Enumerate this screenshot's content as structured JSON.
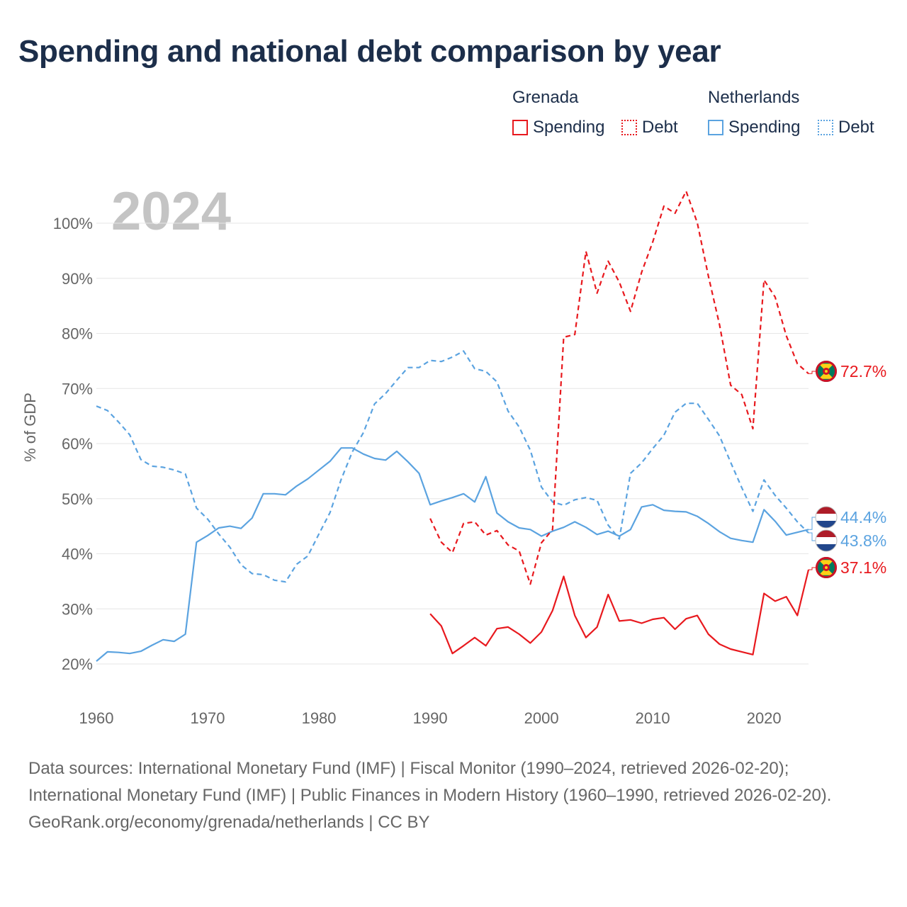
{
  "title": "Spending and national debt comparison by year",
  "legend": {
    "groups": [
      {
        "name": "Grenada",
        "spending": "Spending",
        "debt": "Debt",
        "color": "#e8191e"
      },
      {
        "name": "Netherlands",
        "spending": "Spending",
        "debt": "Debt",
        "color": "#5ba3e0"
      }
    ]
  },
  "footer": {
    "sources": "Data sources: International Monetary Fund (IMF) | Fiscal Monitor (1990–2024, retrieved 2026-02-20); International Monetary Fund (IMF) | Public Finances in Modern History (1960–1990, retrieved 2026-02-20).",
    "credit": "GeoRank.org/economy/grenada/netherlands | CC BY"
  },
  "chart_data": {
    "type": "line",
    "year_label": "2024",
    "ylabel": "% of GDP",
    "xlim": [
      1960,
      2024
    ],
    "ylim": [
      15,
      107
    ],
    "xticks": [
      1960,
      1970,
      1980,
      1990,
      2000,
      2010,
      2020
    ],
    "yticks": [
      20,
      30,
      40,
      50,
      60,
      70,
      80,
      90,
      100
    ],
    "series": [
      {
        "name": "Netherlands Spending",
        "country": "Netherlands",
        "kind": "spending",
        "color": "#5ba3e0",
        "dashed": false,
        "x": [
          1960,
          1961,
          1962,
          1963,
          1964,
          1965,
          1966,
          1967,
          1968,
          1969,
          1970,
          1971,
          1972,
          1973,
          1974,
          1975,
          1976,
          1977,
          1978,
          1979,
          1980,
          1981,
          1982,
          1983,
          1984,
          1985,
          1986,
          1987,
          1988,
          1989,
          1990,
          1991,
          1992,
          1993,
          1994,
          1995,
          1996,
          1997,
          1998,
          1999,
          2000,
          2001,
          2002,
          2003,
          2004,
          2005,
          2006,
          2007,
          2008,
          2009,
          2010,
          2011,
          2012,
          2013,
          2014,
          2015,
          2016,
          2017,
          2018,
          2019,
          2020,
          2021,
          2022,
          2023,
          2024
        ],
        "values": [
          20.5,
          22.2,
          22.1,
          21.9,
          22.3,
          23.4,
          24.4,
          24.1,
          25.4,
          42.1,
          43.3,
          44.7,
          45.0,
          44.6,
          46.5,
          50.9,
          50.9,
          50.7,
          52.3,
          53.6,
          55.2,
          56.8,
          59.2,
          59.2,
          58.1,
          57.3,
          57.0,
          58.6,
          56.7,
          54.6,
          48.9,
          49.6,
          50.2,
          50.9,
          49.4,
          54.0,
          47.4,
          45.8,
          44.7,
          44.4,
          43.2,
          44.1,
          44.8,
          45.8,
          44.8,
          43.5,
          44.1,
          43.2,
          44.4,
          48.5,
          48.9,
          47.9,
          47.7,
          47.6,
          46.8,
          45.5,
          44.0,
          42.8,
          42.4,
          42.1,
          48.0,
          45.9,
          43.4,
          43.9,
          44.4
        ],
        "end_label": "44.4%"
      },
      {
        "name": "Netherlands Debt",
        "country": "Netherlands",
        "kind": "debt",
        "color": "#5ba3e0",
        "dashed": true,
        "x": [
          1960,
          1961,
          1962,
          1963,
          1964,
          1965,
          1966,
          1967,
          1968,
          1969,
          1970,
          1971,
          1972,
          1973,
          1974,
          1975,
          1976,
          1977,
          1978,
          1979,
          1980,
          1981,
          1982,
          1983,
          1984,
          1985,
          1986,
          1987,
          1988,
          1989,
          1990,
          1991,
          1992,
          1993,
          1994,
          1995,
          1996,
          1997,
          1998,
          1999,
          2000,
          2001,
          2002,
          2003,
          2004,
          2005,
          2006,
          2007,
          2008,
          2009,
          2010,
          2011,
          2012,
          2013,
          2014,
          2015,
          2016,
          2017,
          2018,
          2019,
          2020,
          2021,
          2022,
          2023,
          2024
        ],
        "values": [
          66.8,
          66.0,
          63.9,
          61.6,
          57.1,
          55.9,
          55.7,
          55.2,
          54.5,
          48.3,
          46.3,
          43.6,
          41.2,
          38.0,
          36.4,
          36.2,
          35.2,
          34.9,
          38.1,
          39.6,
          43.6,
          47.5,
          53.5,
          58.5,
          62.0,
          67.2,
          69.1,
          71.5,
          73.8,
          73.8,
          75.1,
          74.9,
          75.7,
          76.8,
          73.6,
          73.1,
          71.2,
          65.9,
          63.0,
          58.8,
          52.1,
          49.4,
          48.8,
          49.8,
          50.2,
          49.7,
          45.2,
          42.7,
          54.6,
          56.5,
          59.1,
          61.5,
          65.7,
          67.3,
          67.3,
          64.4,
          61.4,
          56.6,
          52.0,
          47.7,
          53.4,
          50.6,
          48.3,
          45.8,
          43.8
        ],
        "end_label": "43.8%"
      },
      {
        "name": "Grenada Spending",
        "country": "Grenada",
        "kind": "spending",
        "color": "#e8191e",
        "dashed": false,
        "x": [
          1990,
          1991,
          1992,
          1993,
          1994,
          1995,
          1996,
          1997,
          1998,
          1999,
          2000,
          2001,
          2002,
          2003,
          2004,
          2005,
          2006,
          2007,
          2008,
          2009,
          2010,
          2011,
          2012,
          2013,
          2014,
          2015,
          2016,
          2017,
          2018,
          2019,
          2020,
          2021,
          2022,
          2023,
          2024
        ],
        "values": [
          29.1,
          26.9,
          21.9,
          23.3,
          24.8,
          23.3,
          26.4,
          26.7,
          25.4,
          23.8,
          25.8,
          29.7,
          35.9,
          28.8,
          24.8,
          26.7,
          32.6,
          27.8,
          28.0,
          27.4,
          28.1,
          28.4,
          26.3,
          28.2,
          28.8,
          25.4,
          23.6,
          22.7,
          22.2,
          21.7,
          32.8,
          31.4,
          32.2,
          28.8,
          37.1
        ],
        "end_label": "37.1%"
      },
      {
        "name": "Grenada Debt",
        "country": "Grenada",
        "kind": "debt",
        "color": "#e8191e",
        "dashed": true,
        "x": [
          1990,
          1991,
          1992,
          1993,
          1994,
          1995,
          1996,
          1997,
          1998,
          1999,
          2000,
          2001,
          2002,
          2003,
          2004,
          2005,
          2006,
          2007,
          2008,
          2009,
          2010,
          2011,
          2012,
          2013,
          2014,
          2015,
          2016,
          2017,
          2018,
          2019,
          2020,
          2021,
          2022,
          2023,
          2024
        ],
        "values": [
          46.4,
          42.1,
          40.2,
          45.5,
          45.8,
          43.4,
          44.2,
          41.6,
          40.5,
          34.5,
          42.0,
          44.4,
          79.3,
          79.8,
          94.9,
          87.3,
          93.1,
          89.3,
          84.0,
          91.1,
          96.6,
          103.1,
          101.8,
          105.8,
          100.1,
          90.4,
          81.6,
          70.6,
          68.9,
          62.7,
          89.7,
          86.6,
          79.6,
          74.5,
          72.7
        ],
        "end_label": "72.7%"
      }
    ]
  }
}
